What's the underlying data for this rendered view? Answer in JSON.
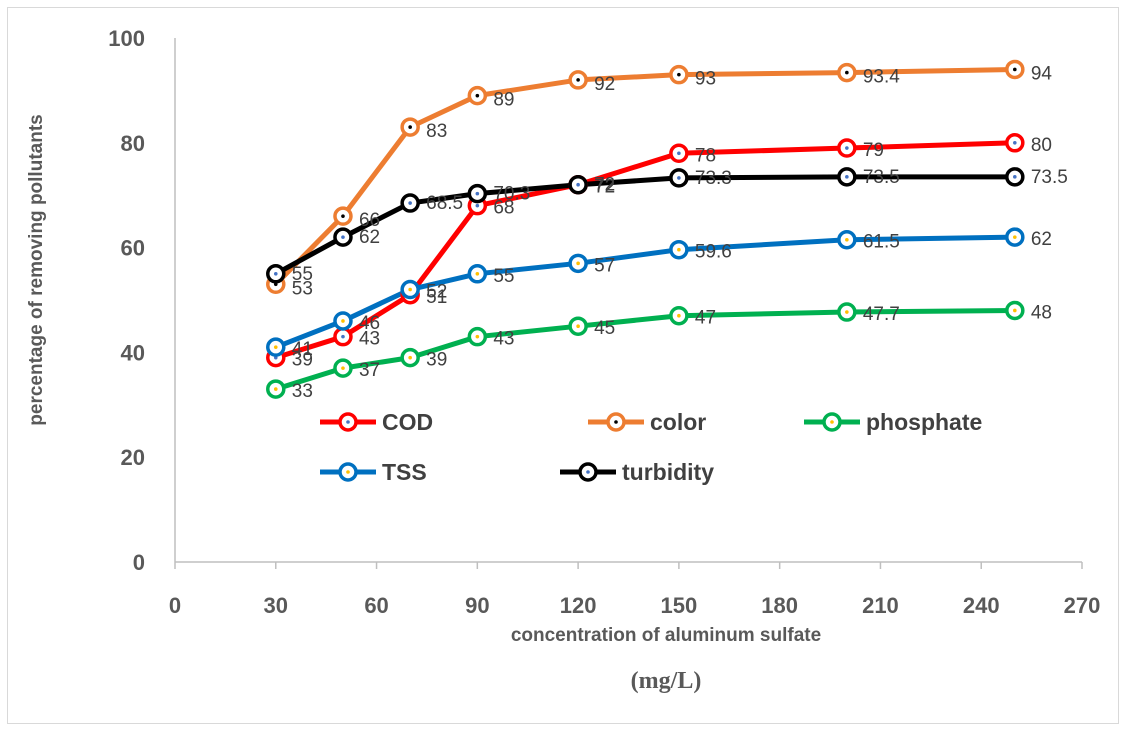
{
  "chart_data": {
    "type": "line",
    "title": "",
    "xlabel": "concentration of aluminum sulfate",
    "xlabel_unit": "(mg/L)",
    "ylabel": "percentage of removing pollutants",
    "xlim": [
      0,
      270
    ],
    "ylim": [
      0,
      100
    ],
    "xticks": [
      0,
      30,
      60,
      90,
      120,
      150,
      180,
      210,
      240,
      270
    ],
    "yticks": [
      0,
      20,
      40,
      60,
      80,
      100
    ],
    "x": [
      30,
      50,
      70,
      90,
      120,
      150,
      200,
      250
    ],
    "grid": false,
    "legend_position": "center",
    "series": [
      {
        "name": "COD",
        "color": "#ff0000",
        "marker_dot": "#4472c4",
        "values": [
          39,
          43,
          51,
          68,
          72,
          78,
          79,
          80
        ],
        "labels": [
          "39",
          "43",
          "51",
          "68",
          "72",
          "78",
          "79",
          "80"
        ]
      },
      {
        "name": "color",
        "color": "#ed7d31",
        "marker_dot": "#000000",
        "values": [
          53,
          66,
          83,
          89,
          92,
          93,
          93.4,
          94
        ],
        "labels": [
          "53",
          "66",
          "83",
          "89",
          "92",
          "93",
          "93.4",
          "94"
        ]
      },
      {
        "name": "phosphate",
        "color": "#00b050",
        "marker_dot": "#ffc000",
        "values": [
          33,
          37,
          39,
          43,
          45,
          47,
          47.7,
          48
        ],
        "labels": [
          "33",
          "37",
          "39",
          "43",
          "45",
          "47",
          "47.7",
          "48"
        ]
      },
      {
        "name": "TSS",
        "color": "#0070c0",
        "marker_dot": "#ffc000",
        "values": [
          41,
          46,
          52,
          55,
          57,
          59.6,
          61.5,
          62
        ],
        "labels": [
          "41",
          "46",
          "52",
          "55",
          "57",
          "59.6",
          "61.5",
          "62"
        ]
      },
      {
        "name": "turbidity",
        "color": "#000000",
        "marker_dot": "#4472c4",
        "values": [
          55,
          62,
          68.5,
          70.3,
          72,
          73.3,
          73.5,
          73.5
        ],
        "labels": [
          "55",
          "62",
          "68.5",
          "70.3",
          "72",
          "73.3",
          "73.5",
          "73.5"
        ]
      }
    ]
  }
}
